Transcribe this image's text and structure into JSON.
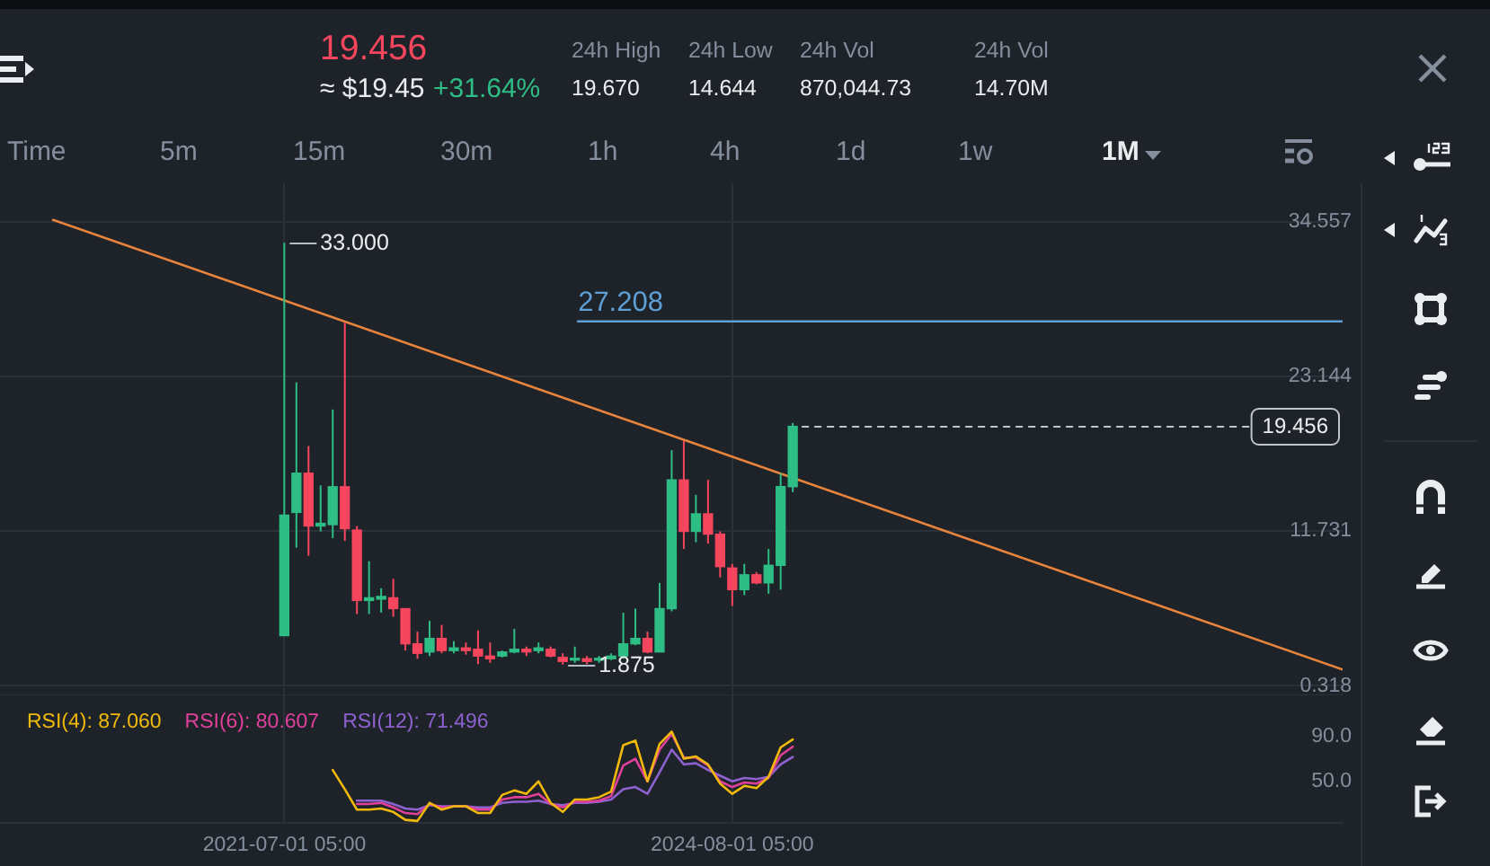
{
  "chart_data": [
    {
      "type": "other",
      "annotations": [
        "19.456",
        "≈ $19.45",
        "+31.64%",
        "24h High",
        "19.670",
        "24h Low",
        "14.644",
        "24h Vol",
        "870,044.73",
        "24h Vol",
        "14.70M",
        "Time",
        "5m",
        "15m",
        "30m",
        "1h",
        "4h",
        "1d",
        "1w",
        "1M"
      ]
    },
    {
      "type": "candlestick",
      "x": [
        "2021-07",
        "2021-08",
        "2021-09",
        "2021-10",
        "2021-11",
        "2021-12",
        "2022-01",
        "2022-02",
        "2022-03",
        "2022-04",
        "2022-05",
        "2022-06",
        "2022-07",
        "2022-08",
        "2022-09",
        "2022-10",
        "2022-11",
        "2022-12",
        "2023-01",
        "2023-02",
        "2023-03",
        "2023-04",
        "2023-05",
        "2023-06",
        "2023-07",
        "2023-08",
        "2023-09",
        "2023-10",
        "2023-11",
        "2023-12",
        "2024-01",
        "2024-02",
        "2024-03",
        "2024-04",
        "2024-05",
        "2024-06",
        "2024-07",
        "2024-08",
        "2024-09",
        "2024-10",
        "2024-11",
        "2024-12",
        "2025-01"
      ],
      "ohlc": [
        [
          4.0,
          33.0,
          4.0,
          12.9
        ],
        [
          13.1,
          22.7,
          10.5,
          16.0
        ],
        [
          16.0,
          18.0,
          9.9,
          12.1
        ],
        [
          12.1,
          15.1,
          11.7,
          12.3
        ],
        [
          12.2,
          20.7,
          11.2,
          15.0
        ],
        [
          15.0,
          27.1,
          11.0,
          11.9
        ],
        [
          11.8,
          12.1,
          5.6,
          6.6
        ],
        [
          6.6,
          9.5,
          5.6,
          6.8
        ],
        [
          6.7,
          7.5,
          5.7,
          6.9
        ],
        [
          6.8,
          8.2,
          5.4,
          6.0
        ],
        [
          6.0,
          6.0,
          2.9,
          3.4
        ],
        [
          3.4,
          4.3,
          2.3,
          2.7
        ],
        [
          2.8,
          5.1,
          2.5,
          3.8
        ],
        [
          3.8,
          4.8,
          2.7,
          2.9
        ],
        [
          2.9,
          3.6,
          2.7,
          3.1
        ],
        [
          3.1,
          3.5,
          2.6,
          2.9
        ],
        [
          3.0,
          4.4,
          1.9,
          2.5
        ],
        [
          2.5,
          3.5,
          2.0,
          2.3
        ],
        [
          2.5,
          2.9,
          2.4,
          2.8
        ],
        [
          2.8,
          4.5,
          2.7,
          3.0
        ],
        [
          3.0,
          3.2,
          2.5,
          2.8
        ],
        [
          2.9,
          3.5,
          2.7,
          3.1
        ],
        [
          3.0,
          3.2,
          2.4,
          2.5
        ],
        [
          2.4,
          2.7,
          1.875,
          2.1
        ],
        [
          2.2,
          3.2,
          2.0,
          2.3
        ],
        [
          2.3,
          2.5,
          1.9,
          2.1
        ],
        [
          2.2,
          2.5,
          2.0,
          2.3
        ],
        [
          2.3,
          2.7,
          2.2,
          2.5
        ],
        [
          2.5,
          5.7,
          2.3,
          3.4
        ],
        [
          3.4,
          6.0,
          3.3,
          3.8
        ],
        [
          3.8,
          4.3,
          2.7,
          2.8
        ],
        [
          2.8,
          7.9,
          2.8,
          6.0
        ],
        [
          6.0,
          17.7,
          5.8,
          15.5
        ],
        [
          15.5,
          18.4,
          10.4,
          11.7
        ],
        [
          11.7,
          14.4,
          10.9,
          13.0
        ],
        [
          13.0,
          15.5,
          10.8,
          11.5
        ],
        [
          11.5,
          11.7,
          8.3,
          9.1
        ],
        [
          9.0,
          9.3,
          6.2,
          7.4
        ],
        [
          7.4,
          9.3,
          7.0,
          8.5
        ],
        [
          8.5,
          8.7,
          7.8,
          7.9
        ],
        [
          7.9,
          10.4,
          7.1,
          9.2
        ],
        [
          9.2,
          16.0,
          7.4,
          15.0
        ],
        [
          15.0,
          19.7,
          14.6,
          19.456
        ]
      ],
      "colors": [
        "#2ebd85",
        "#2ebd85",
        "#f6465d",
        "#2ebd85",
        "#2ebd85",
        "#f6465d",
        "#f6465d",
        "#2ebd85",
        "#2ebd85",
        "#f6465d",
        "#f6465d",
        "#f6465d",
        "#2ebd85",
        "#f6465d",
        "#2ebd85",
        "#f6465d",
        "#f6465d",
        "#f6465d",
        "#2ebd85",
        "#2ebd85",
        "#f6465d",
        "#2ebd85",
        "#f6465d",
        "#f6465d",
        "#2ebd85",
        "#f6465d",
        "#2ebd85",
        "#2ebd85",
        "#2ebd85",
        "#2ebd85",
        "#f6465d",
        "#2ebd85",
        "#2ebd85",
        "#f6465d",
        "#2ebd85",
        "#f6465d",
        "#f6465d",
        "#f6465d",
        "#2ebd85",
        "#f6465d",
        "#2ebd85",
        "#2ebd85",
        "#2ebd85"
      ],
      "series": [
        {
          "type": "line",
          "x": [
            "2019-11-28",
            "2028-10-14"
          ],
          "values": [
            34.7,
            1.5
          ],
          "color": "#e8843c"
        },
        {
          "type": "line",
          "x": [
            "2023-07-09",
            "2028-10-14"
          ],
          "values": [
            27.208,
            27.208
          ],
          "color": "#5e9fd6"
        }
      ],
      "xlim": [
        "2019-07-17",
        "2028-10-14"
      ],
      "ylim": [
        -0.4,
        37.4
      ],
      "xticks": [
        {
          "value": "2021-07-01T05:00",
          "label": null
        },
        {
          "value": "2024-08-01T05:00",
          "label": null
        }
      ],
      "yticks": [
        34.557,
        23.144,
        11.731,
        0.318
      ],
      "ref_lines": [
        {
          "axis": "y",
          "value": 19.456,
          "label": "19.456",
          "line_style": "dashed",
          "color": "#c0c4cc"
        }
      ],
      "annotations": [
        {
          "text": "33.000",
          "x": "2021-07",
          "y": 33.0
        },
        {
          "text": "1.875",
          "x": "2023-06",
          "y": 1.875
        },
        {
          "text": "27.208",
          "x": "2023-07-09",
          "y": 27.208
        }
      ],
      "grid": true,
      "tick_labels": "y"
    },
    {
      "type": "line",
      "x": [
        "2021-11",
        "2021-12",
        "2022-01",
        "2022-02",
        "2022-03",
        "2022-04",
        "2022-05",
        "2022-06",
        "2022-07",
        "2022-08",
        "2022-09",
        "2022-10",
        "2022-11",
        "2022-12",
        "2023-01",
        "2023-02",
        "2023-03",
        "2023-04",
        "2023-05",
        "2023-06",
        "2023-07",
        "2023-08",
        "2023-09",
        "2023-10",
        "2023-11",
        "2023-12",
        "2024-01",
        "2024-02",
        "2024-03",
        "2024-04",
        "2024-05",
        "2024-06",
        "2024-07",
        "2024-08",
        "2024-09",
        "2024-10",
        "2024-11",
        "2024-12",
        "2025-01"
      ],
      "series": [
        {
          "name": "RSI(4): 87.060",
          "color": "#f0b90b",
          "values": [
            60,
            43,
            25,
            25,
            26,
            23,
            16,
            15,
            31,
            25,
            28,
            28,
            22,
            22,
            38,
            42,
            39,
            50,
            31,
            23,
            34,
            34,
            36,
            41,
            82,
            86,
            50,
            83,
            94,
            70,
            72,
            65,
            48,
            39,
            46,
            44,
            54,
            80,
            87.06
          ]
        },
        {
          "name": "RSI(6): 80.607",
          "color": "#e0409a",
          "values": [
            null,
            null,
            30,
            30,
            31,
            27,
            22,
            21,
            30,
            27,
            28,
            28,
            25,
            25,
            34,
            36,
            36,
            39,
            30,
            27,
            32,
            32,
            33,
            37,
            64,
            70,
            50,
            78,
            92,
            71,
            71,
            64,
            50,
            45,
            49,
            48,
            53,
            73,
            80.607
          ]
        },
        {
          "name": "RSI(12): 71.496",
          "color": "#8d62d0",
          "values": [
            null,
            null,
            33,
            33,
            33,
            30,
            26,
            25,
            29,
            28,
            28,
            28,
            27,
            27,
            31,
            32,
            32,
            33,
            30,
            29,
            31,
            31,
            32,
            34,
            43,
            45,
            39,
            58,
            78,
            65,
            66,
            60,
            55,
            50,
            53,
            52,
            54,
            65,
            71.496
          ]
        }
      ],
      "xlim": [
        "2019-07-17",
        "2028-10-14"
      ],
      "ylim": [
        13,
        126
      ],
      "xticks": [
        {
          "value": "2021-07-01T05:00",
          "label": "2021-07-01 05:00"
        },
        {
          "value": "2024-08-01T05:00",
          "label": "2024-08-01 05:00"
        }
      ],
      "yticks": [
        {
          "value": 90,
          "label": "90.0"
        },
        {
          "value": 50,
          "label": "50.0"
        }
      ],
      "grid": "x",
      "legend": "top left"
    }
  ]
}
